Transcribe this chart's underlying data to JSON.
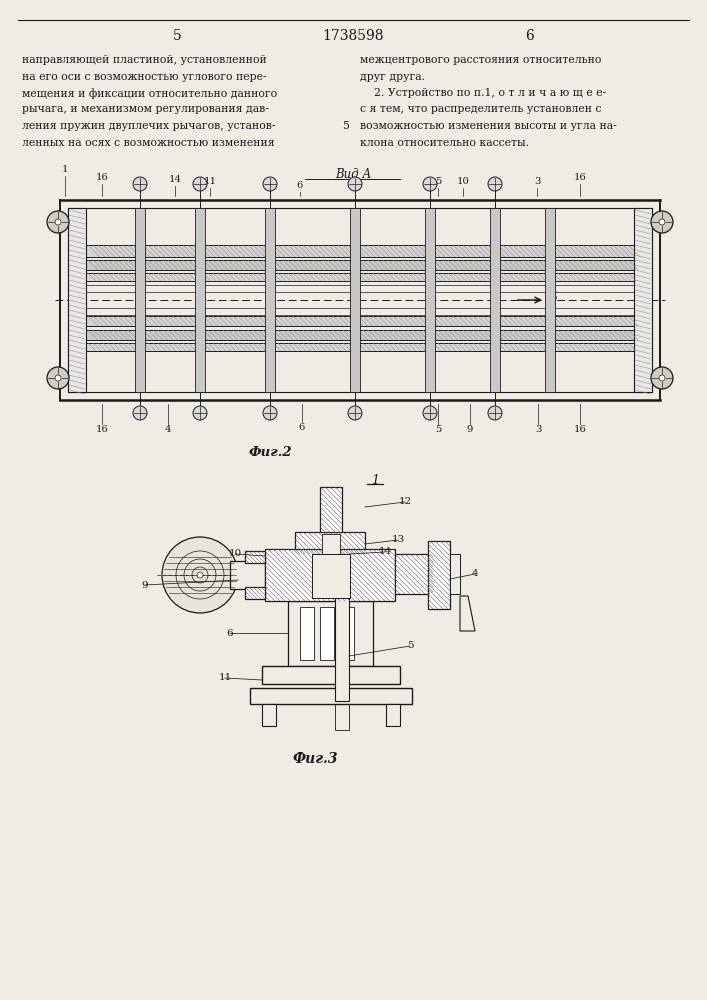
{
  "bg_color": "#f0ece4",
  "text_color": "#1a1a1a",
  "line_color": "#1a1a1a",
  "page_num_left": "5",
  "page_num_center": "1738598",
  "page_num_right": "6",
  "text_left_lines": [
    "направляющей пластиной, установленной",
    "на его оси с возможностью углового пере-",
    "мещения и фиксации относительно данного",
    "рычага, и механизмом регулирования дав-",
    "ления пружин двуплечих рычагов, установ-",
    "ленных на осях с возможностью изменения"
  ],
  "text_right_lines": [
    "межцентрового расстояния относительно",
    "друг друга.",
    "    2. Устройство по п.1, о т л и ч а ю щ е е-",
    "с я тем, что распределитель установлен с",
    "возможностью изменения высоты и угла на-",
    "клона относительно кассеты."
  ],
  "line5_marker": "5",
  "view_label": "Вид А",
  "fig2_label": "Фиг.2",
  "fig3_label": "Фиг.3",
  "fig3_top_label": "1"
}
